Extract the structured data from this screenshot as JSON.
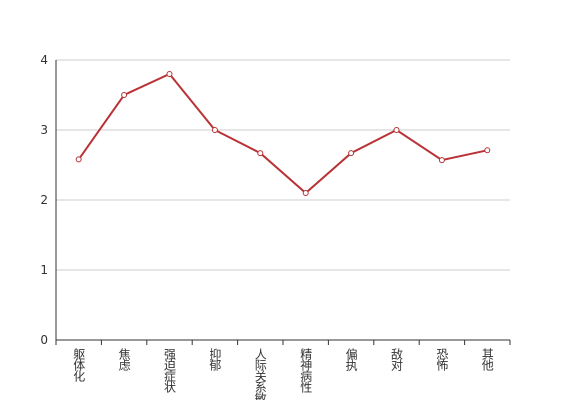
{
  "chart_data": {
    "type": "line",
    "categories": [
      "躯体化",
      "焦虑",
      "强迫症状",
      "抑郁",
      "人际关系敏感",
      "精神病性",
      "偏执",
      "敌对",
      "恐怖",
      "其他"
    ],
    "values": [
      2.58,
      3.5,
      3.8,
      3.0,
      2.67,
      2.1,
      2.67,
      3.0,
      2.57,
      2.71
    ],
    "color": "#b83236",
    "ylim": [
      0,
      4
    ],
    "yticks": [
      0,
      1,
      2,
      3,
      4
    ],
    "grid": true
  }
}
